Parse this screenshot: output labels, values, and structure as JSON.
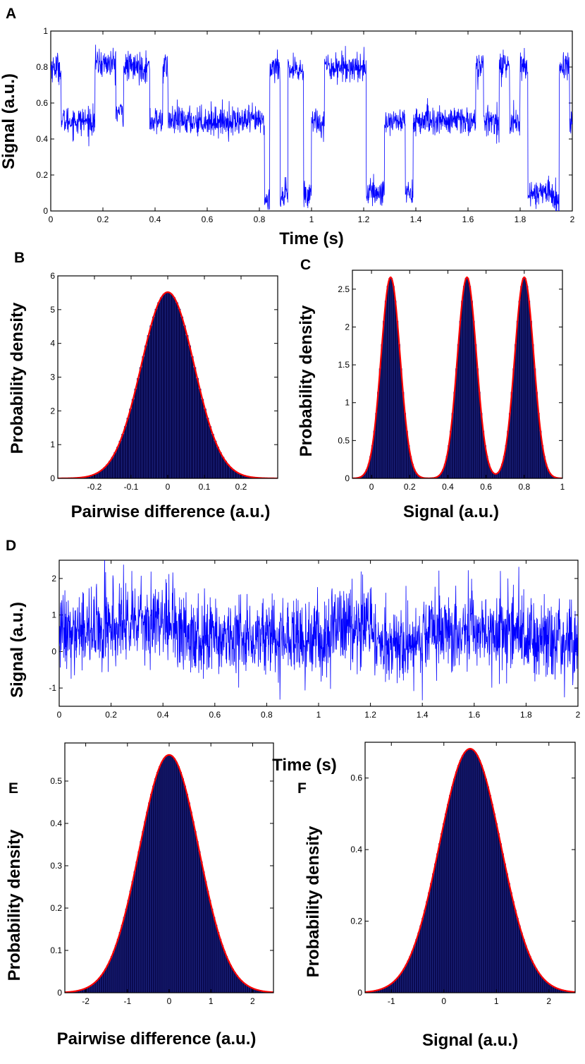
{
  "chart_data": [
    {
      "id": "A",
      "letter": "A",
      "type": "line",
      "xlabel": "Time (s)",
      "ylabel": "Signal (a.u.)",
      "xlim": [
        0,
        2
      ],
      "ylim": [
        0,
        1
      ],
      "xticks": [
        0,
        0.2,
        0.4,
        0.6,
        0.8,
        1,
        1.2,
        1.4,
        1.6,
        1.8,
        2
      ],
      "xtick_labels": [
        "0",
        "0.2",
        "0.4",
        "0.6",
        "0.8",
        "1",
        "1.2",
        "1.4",
        "1.6",
        "1.8",
        "2"
      ],
      "yticks": [
        0,
        0.2,
        0.4,
        0.6,
        0.8,
        1
      ],
      "ytick_labels": [
        "0",
        "0.2",
        "0.4",
        "0.6",
        "0.8",
        "1"
      ],
      "line_color": "#0000ff",
      "noise_sd": 0.04,
      "segments": [
        {
          "start": 0.0,
          "end": 0.04,
          "level": 0.8
        },
        {
          "start": 0.04,
          "end": 0.17,
          "level": 0.5
        },
        {
          "start": 0.17,
          "end": 0.25,
          "level": 0.82
        },
        {
          "start": 0.25,
          "end": 0.28,
          "level": 0.55
        },
        {
          "start": 0.28,
          "end": 0.38,
          "level": 0.8
        },
        {
          "start": 0.38,
          "end": 0.43,
          "level": 0.5
        },
        {
          "start": 0.43,
          "end": 0.45,
          "level": 0.8
        },
        {
          "start": 0.45,
          "end": 0.82,
          "level": 0.5
        },
        {
          "start": 0.82,
          "end": 0.84,
          "level": 0.05
        },
        {
          "start": 0.84,
          "end": 0.88,
          "level": 0.8
        },
        {
          "start": 0.88,
          "end": 0.91,
          "level": 0.08
        },
        {
          "start": 0.91,
          "end": 0.97,
          "level": 0.78
        },
        {
          "start": 0.97,
          "end": 1.0,
          "level": 0.1
        },
        {
          "start": 1.0,
          "end": 1.05,
          "level": 0.5
        },
        {
          "start": 1.05,
          "end": 1.21,
          "level": 0.8
        },
        {
          "start": 1.21,
          "end": 1.28,
          "level": 0.1
        },
        {
          "start": 1.28,
          "end": 1.3,
          "level": 0.5
        },
        {
          "start": 1.3,
          "end": 1.36,
          "level": 0.5
        },
        {
          "start": 1.36,
          "end": 1.39,
          "level": 0.1
        },
        {
          "start": 1.39,
          "end": 1.63,
          "level": 0.5
        },
        {
          "start": 1.63,
          "end": 1.66,
          "level": 0.8
        },
        {
          "start": 1.66,
          "end": 1.72,
          "level": 0.5
        },
        {
          "start": 1.72,
          "end": 1.76,
          "level": 0.8
        },
        {
          "start": 1.76,
          "end": 1.8,
          "level": 0.5
        },
        {
          "start": 1.8,
          "end": 1.83,
          "level": 0.8
        },
        {
          "start": 1.83,
          "end": 1.93,
          "level": 0.1
        },
        {
          "start": 1.93,
          "end": 1.95,
          "level": 0.05
        },
        {
          "start": 1.95,
          "end": 1.99,
          "level": 0.8
        },
        {
          "start": 1.99,
          "end": 2.0,
          "level": 0.5
        }
      ]
    },
    {
      "id": "B",
      "letter": "B",
      "type": "bar",
      "xlabel": "Pairwise difference (a.u.)",
      "ylabel": "Probability density",
      "xlim": [
        -0.3,
        0.3
      ],
      "ylim": [
        0,
        6
      ],
      "xticks": [
        -0.2,
        -0.1,
        0,
        0.1,
        0.2
      ],
      "xtick_labels": [
        "-0.2",
        "-0.1",
        "0",
        "0.1",
        "0.2"
      ],
      "yticks": [
        0,
        1,
        2,
        3,
        4,
        5,
        6
      ],
      "ytick_labels": [
        "0",
        "1",
        "2",
        "3",
        "4",
        "5",
        "6"
      ],
      "bar_color": "#0a0a50",
      "fit_color": "#ff0000",
      "components": [
        {
          "mean": 0,
          "sd": 0.0723,
          "weight": 1
        }
      ],
      "bin_range": [
        -0.28,
        0.28
      ],
      "bin_count": 80
    },
    {
      "id": "C",
      "letter": "C",
      "type": "bar",
      "xlabel": "Signal (a.u.)",
      "ylabel": "Probability density",
      "xlim": [
        -0.1,
        1
      ],
      "ylim": [
        0,
        2.75
      ],
      "xticks": [
        0,
        0.2,
        0.4,
        0.6,
        0.8,
        1
      ],
      "xtick_labels": [
        "0",
        "0.2",
        "0.4",
        "0.6",
        "0.8",
        "1"
      ],
      "yticks": [
        0,
        0.5,
        1,
        1.5,
        2,
        2.5
      ],
      "ytick_labels": [
        "0",
        "0.5",
        "1",
        "1.5",
        "2",
        "2.5"
      ],
      "bar_color": "#0a0a50",
      "fit_color": "#ff0000",
      "components": [
        {
          "mean": 0.1,
          "sd": 0.05,
          "weight": 0.333
        },
        {
          "mean": 0.5,
          "sd": 0.05,
          "weight": 0.333
        },
        {
          "mean": 0.8,
          "sd": 0.05,
          "weight": 0.333
        }
      ],
      "bin_range": [
        -0.1,
        1.0
      ],
      "bin_count": 110
    },
    {
      "id": "D",
      "letter": "D",
      "type": "line",
      "xlabel": "Time (s)",
      "ylabel": "Signal (a.u.)",
      "xlim": [
        0,
        2
      ],
      "ylim": [
        -1.5,
        2.5
      ],
      "xticks": [
        0,
        0.2,
        0.4,
        0.6,
        0.8,
        1,
        1.2,
        1.4,
        1.6,
        1.8,
        2
      ],
      "xtick_labels": [
        "0",
        "0.2",
        "0.4",
        "0.6",
        "0.8",
        "1",
        "1.2",
        "1.4",
        "1.6",
        "1.8",
        "2"
      ],
      "yticks": [
        -1,
        0,
        1,
        2
      ],
      "ytick_labels": [
        "-1",
        "0",
        "1",
        "2"
      ],
      "line_color": "#0000ff",
      "noise_sd": 0.55,
      "segments": [
        {
          "start": 0.0,
          "end": 0.17,
          "level": 0.5
        },
        {
          "start": 0.17,
          "end": 0.45,
          "level": 0.75
        },
        {
          "start": 0.45,
          "end": 0.82,
          "level": 0.45
        },
        {
          "start": 0.82,
          "end": 1.05,
          "level": 0.35
        },
        {
          "start": 1.05,
          "end": 1.21,
          "level": 0.8
        },
        {
          "start": 1.21,
          "end": 1.4,
          "level": 0.2
        },
        {
          "start": 1.4,
          "end": 1.83,
          "level": 0.55
        },
        {
          "start": 1.83,
          "end": 2.0,
          "level": 0.3
        }
      ]
    },
    {
      "id": "E",
      "letter": "E",
      "type": "bar",
      "xlabel": "Pairwise difference (a.u.)",
      "ylabel": "Probability density",
      "xlim": [
        -2.5,
        2.5
      ],
      "ylim": [
        0,
        0.59
      ],
      "xticks": [
        -2,
        -1,
        0,
        1,
        2
      ],
      "xtick_labels": [
        "-2",
        "-1",
        "0",
        "1",
        "2"
      ],
      "yticks": [
        0,
        0.1,
        0.2,
        0.3,
        0.4,
        0.5
      ],
      "ytick_labels": [
        "0",
        "0.1",
        "0.2",
        "0.3",
        "0.4",
        "0.5"
      ],
      "bar_color": "#0a0a50",
      "fit_color": "#ff0000",
      "components": [
        {
          "mean": 0,
          "sd": 0.71,
          "weight": 1
        }
      ],
      "bin_range": [
        -2.5,
        2.5
      ],
      "bin_count": 100
    },
    {
      "id": "F",
      "letter": "F",
      "type": "bar",
      "xlabel": "Signal (a.u.)",
      "ylabel": "Probability density",
      "xlim": [
        -1.5,
        2.5
      ],
      "ylim": [
        0,
        0.7
      ],
      "xticks": [
        -1,
        0,
        1,
        2
      ],
      "xtick_labels": [
        "-1",
        "0",
        "1",
        "2"
      ],
      "yticks": [
        0,
        0.2,
        0.4,
        0.6
      ],
      "ytick_labels": [
        "0",
        "0.2",
        "0.4",
        "0.6"
      ],
      "bar_color": "#0a0a50",
      "fit_color": "#ff0000",
      "components": [
        {
          "mean": 0.5,
          "sd": 0.585,
          "weight": 1
        }
      ],
      "bin_range": [
        -1.5,
        2.5
      ],
      "bin_count": 100
    }
  ]
}
